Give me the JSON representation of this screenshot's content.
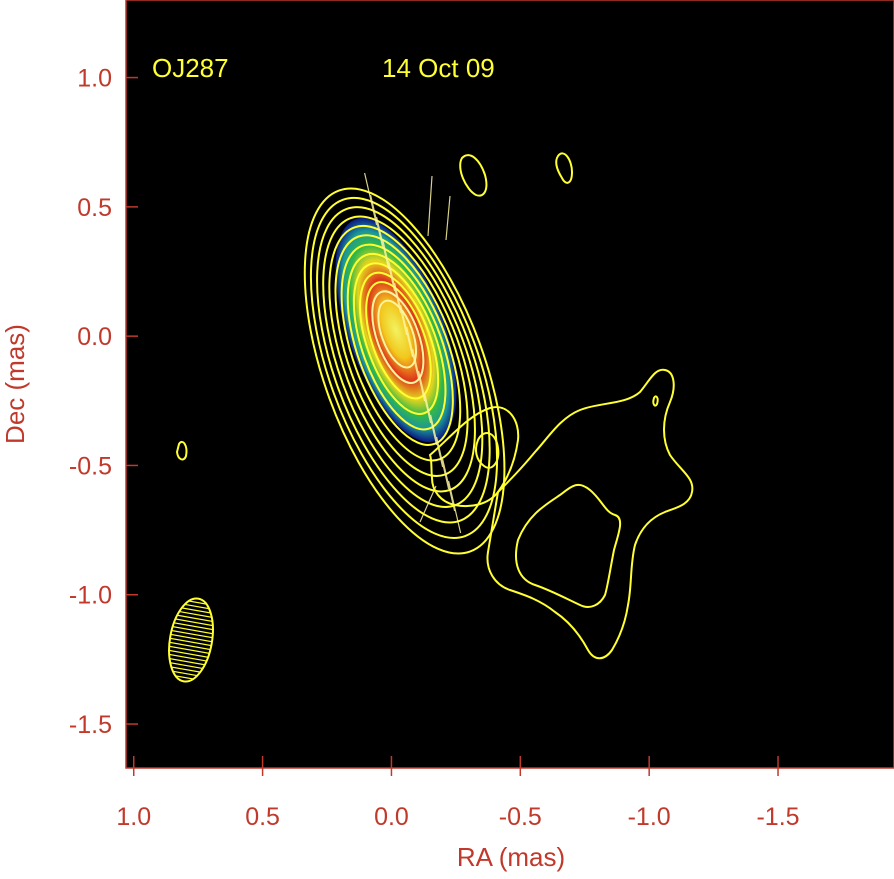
{
  "colors": {
    "axis": "#c0392b",
    "background": "#000000",
    "contour": "#ffff33",
    "colormap": [
      "#0b1a8a",
      "#1e9fa0",
      "#35c24a",
      "#f0e020",
      "#e0301e",
      "#ffee33"
    ]
  },
  "chart_data": {
    "type": "contour",
    "xlabel": "RA (mas)",
    "ylabel": "Dec (mas)",
    "xlim": [
      1.03,
      -1.95
    ],
    "ylim": [
      -1.67,
      1.3
    ],
    "x_direction": "decreasing to the right",
    "xticks": [
      1.0,
      0.5,
      0.0,
      -0.5,
      -1.0,
      -1.5
    ],
    "xtick_labels": [
      "1.0",
      "0.5",
      "0.0",
      "-0.5",
      "-1.0",
      "-1.5"
    ],
    "yticks": [
      1.0,
      0.5,
      0.0,
      -0.5,
      -1.0,
      -1.5
    ],
    "ytick_labels": [
      "1.0",
      "0.5",
      "0.0",
      "-0.5",
      "-1.0",
      "-1.5"
    ],
    "annotations": {
      "source": "OJ287",
      "date": "14 Oct 09"
    },
    "core": {
      "ra": -0.02,
      "dec": 0.02,
      "position_angle_deg": -20,
      "contour_count": 13
    },
    "beam": {
      "ra": 0.78,
      "dec": -1.17,
      "major_mas": 0.33,
      "minor_mas": 0.14,
      "position_angle_deg": 10
    },
    "vector_ticks_present": true,
    "grid": false
  }
}
